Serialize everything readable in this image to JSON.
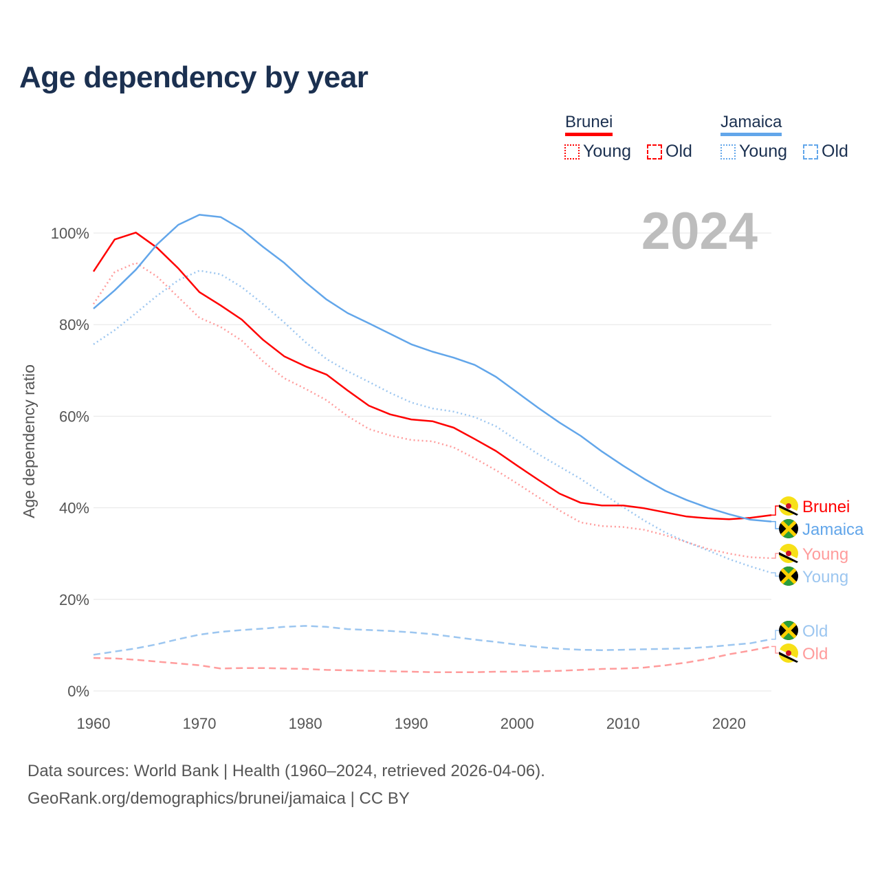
{
  "title": "Age dependency by year",
  "legend": {
    "groups": [
      {
        "name": "Brunei",
        "color": "#ff0000",
        "young": "Young",
        "old": "Old"
      },
      {
        "name": "Jamaica",
        "color": "#62a6ea",
        "young": "Young",
        "old": "Old"
      }
    ]
  },
  "footer": {
    "line1": "Data sources: World Bank | Health (1960–2024, retrieved 2026-04-06).",
    "line2": "GeoRank.org/demographics/brunei/jamaica | CC BY"
  },
  "chart_data": {
    "type": "line",
    "title": "Age dependency by year",
    "year_label": "2024",
    "xlabel": "",
    "ylabel": "Age dependency ratio",
    "xlim": [
      1960,
      2024
    ],
    "ylim": [
      0,
      110
    ],
    "x_ticks": [
      "1960",
      "1970",
      "1980",
      "1990",
      "2000",
      "2010",
      "2020"
    ],
    "y_ticks": [
      "0%",
      "20%",
      "40%",
      "60%",
      "80%",
      "100%"
    ],
    "grid": true,
    "x": [
      1960,
      1962,
      1964,
      1966,
      1968,
      1970,
      1972,
      1974,
      1976,
      1978,
      1980,
      1982,
      1984,
      1986,
      1988,
      1990,
      1992,
      1994,
      1996,
      1998,
      2000,
      2002,
      2004,
      2006,
      2008,
      2010,
      2012,
      2014,
      2016,
      2018,
      2020,
      2022,
      2024
    ],
    "series": [
      {
        "name": "Brunei",
        "end_label": "Brunei",
        "flag": "brunei",
        "color": "#ff0000",
        "style": "solid",
        "values": [
          91.6,
          98.6,
          100.1,
          96.8,
          92.3,
          87.1,
          84.2,
          81.1,
          76.7,
          73.1,
          70.9,
          69.1,
          65.6,
          62.3,
          60.4,
          59.3,
          58.9,
          57.5,
          55.0,
          52.4,
          49.2,
          46.1,
          43.1,
          41.1,
          40.5,
          40.5,
          39.9,
          39.0,
          38.1,
          37.7,
          37.5,
          37.8,
          38.4
        ]
      },
      {
        "name": "Jamaica",
        "end_label": "Jamaica",
        "flag": "jamaica",
        "color": "#62a6ea",
        "style": "solid",
        "values": [
          83.5,
          87.5,
          92.0,
          97.5,
          101.8,
          104.0,
          103.5,
          100.8,
          97.0,
          93.5,
          89.3,
          85.5,
          82.5,
          80.3,
          78.0,
          75.7,
          74.1,
          72.8,
          71.2,
          68.6,
          65.2,
          61.8,
          58.6,
          55.7,
          52.3,
          49.2,
          46.3,
          43.7,
          41.7,
          40.0,
          38.6,
          37.4,
          37.0
        ]
      },
      {
        "name": "Brunei Young",
        "end_label": "Young",
        "flag": "brunei",
        "color": "#ff9c9c",
        "style": "dotted",
        "values": [
          84.5,
          91.5,
          93.5,
          90.5,
          86.0,
          81.5,
          79.5,
          76.5,
          72.0,
          68.3,
          66.0,
          63.5,
          60.0,
          57.2,
          55.8,
          54.8,
          54.5,
          53.2,
          50.8,
          48.2,
          45.3,
          42.3,
          39.4,
          36.8,
          36.0,
          35.8,
          35.2,
          34.0,
          32.5,
          31.0,
          30.0,
          29.2,
          29.0
        ]
      },
      {
        "name": "Jamaica Young",
        "end_label": "Young",
        "flag": "jamaica",
        "color": "#9cc6f0",
        "style": "dotted",
        "values": [
          75.7,
          78.8,
          82.5,
          86.3,
          89.7,
          91.8,
          91.0,
          88.2,
          84.5,
          80.5,
          76.2,
          72.5,
          69.8,
          67.5,
          65.1,
          63.0,
          61.7,
          61.0,
          59.8,
          57.8,
          54.7,
          51.7,
          49.0,
          46.3,
          43.2,
          40.2,
          37.2,
          34.6,
          32.5,
          30.7,
          28.8,
          27.2,
          25.8
        ]
      },
      {
        "name": "Jamaica Old",
        "end_label": "Old",
        "flag": "jamaica",
        "color": "#9cc6f0",
        "style": "dashed",
        "values": [
          7.9,
          8.6,
          9.3,
          10.2,
          11.3,
          12.3,
          12.9,
          13.3,
          13.6,
          14.0,
          14.2,
          14.0,
          13.5,
          13.3,
          13.1,
          12.8,
          12.4,
          11.8,
          11.2,
          10.7,
          10.1,
          9.6,
          9.2,
          9.0,
          8.9,
          9.0,
          9.1,
          9.2,
          9.3,
          9.6,
          10.0,
          10.4,
          11.3
        ]
      },
      {
        "name": "Brunei Old",
        "end_label": "Old",
        "flag": "brunei",
        "color": "#ff9c9c",
        "style": "dashed",
        "values": [
          7.2,
          7.1,
          6.8,
          6.4,
          6.0,
          5.6,
          4.9,
          5.0,
          5.0,
          4.9,
          4.8,
          4.6,
          4.5,
          4.4,
          4.3,
          4.2,
          4.1,
          4.1,
          4.1,
          4.2,
          4.2,
          4.3,
          4.4,
          4.6,
          4.8,
          4.9,
          5.1,
          5.6,
          6.2,
          7.0,
          8.0,
          8.8,
          9.7
        ]
      }
    ]
  }
}
